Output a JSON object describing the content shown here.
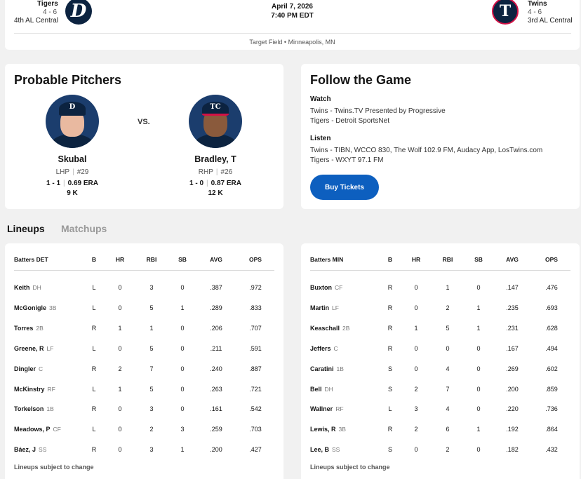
{
  "game": {
    "away": {
      "name": "Tigers",
      "record": "4 - 6",
      "standing": "4th AL Central",
      "logo_glyph": "D",
      "color": "#0c2340"
    },
    "home": {
      "name": "Twins",
      "record": "4 - 6",
      "standing": "3rd AL Central",
      "logo_glyph": "T",
      "color": "#0c2340",
      "accent": "#d31145"
    },
    "date": "April 7, 2026",
    "time": "7:40 PM EDT",
    "venue": "Target Field • Minneapolis, MN"
  },
  "pitchers": {
    "title": "Probable Pitchers",
    "vs": "VS.",
    "away": {
      "name": "Skubal",
      "throws": "LHP",
      "number": "#29",
      "record": "1 - 1",
      "era": "0.69 ERA",
      "strikeouts": "9 K",
      "cap_glyph": "D"
    },
    "home": {
      "name": "Bradley, T",
      "throws": "RHP",
      "number": "#26",
      "record": "1 - 0",
      "era": "0.87 ERA",
      "strikeouts": "12 K",
      "cap_glyph": "TC"
    }
  },
  "follow": {
    "title": "Follow the Game",
    "watch_label": "Watch",
    "watch": [
      "Twins - Twins.TV Presented by Progressive",
      "Tigers - Detroit SportsNet"
    ],
    "listen_label": "Listen",
    "listen": [
      "Twins - TIBN, WCCO 830, The Wolf 102.9 FM, Audacy App, LosTwins.com",
      "Tigers - WXYT 97.1 FM"
    ],
    "tickets_label": "Buy Tickets",
    "tickets_color": "#0d5fbf"
  },
  "tabs": {
    "lineups": "Lineups",
    "matchups": "Matchups"
  },
  "lineups": {
    "columns": [
      "B",
      "HR",
      "RBI",
      "SB",
      "AVG",
      "OPS"
    ],
    "note": "Lineups subject to change",
    "det": {
      "header": "Batters DET",
      "rows": [
        {
          "name": "Keith",
          "pos": "DH",
          "b": "L",
          "hr": "0",
          "rbi": "3",
          "sb": "0",
          "avg": ".387",
          "ops": ".972"
        },
        {
          "name": "McGonigle",
          "pos": "3B",
          "b": "L",
          "hr": "0",
          "rbi": "5",
          "sb": "1",
          "avg": ".289",
          "ops": ".833"
        },
        {
          "name": "Torres",
          "pos": "2B",
          "b": "R",
          "hr": "1",
          "rbi": "1",
          "sb": "0",
          "avg": ".206",
          "ops": ".707"
        },
        {
          "name": "Greene, R",
          "pos": "LF",
          "b": "L",
          "hr": "0",
          "rbi": "5",
          "sb": "0",
          "avg": ".211",
          "ops": ".591"
        },
        {
          "name": "Dingler",
          "pos": "C",
          "b": "R",
          "hr": "2",
          "rbi": "7",
          "sb": "0",
          "avg": ".240",
          "ops": ".887"
        },
        {
          "name": "McKinstry",
          "pos": "RF",
          "b": "L",
          "hr": "1",
          "rbi": "5",
          "sb": "0",
          "avg": ".263",
          "ops": ".721"
        },
        {
          "name": "Torkelson",
          "pos": "1B",
          "b": "R",
          "hr": "0",
          "rbi": "3",
          "sb": "0",
          "avg": ".161",
          "ops": ".542"
        },
        {
          "name": "Meadows, P",
          "pos": "CF",
          "b": "L",
          "hr": "0",
          "rbi": "2",
          "sb": "3",
          "avg": ".259",
          "ops": ".703"
        },
        {
          "name": "Báez, J",
          "pos": "SS",
          "b": "R",
          "hr": "0",
          "rbi": "3",
          "sb": "1",
          "avg": ".200",
          "ops": ".427"
        }
      ]
    },
    "min": {
      "header": "Batters MIN",
      "rows": [
        {
          "name": "Buxton",
          "pos": "CF",
          "b": "R",
          "hr": "0",
          "rbi": "1",
          "sb": "0",
          "avg": ".147",
          "ops": ".476"
        },
        {
          "name": "Martin",
          "pos": "LF",
          "b": "R",
          "hr": "0",
          "rbi": "2",
          "sb": "1",
          "avg": ".235",
          "ops": ".693"
        },
        {
          "name": "Keaschall",
          "pos": "2B",
          "b": "R",
          "hr": "1",
          "rbi": "5",
          "sb": "1",
          "avg": ".231",
          "ops": ".628"
        },
        {
          "name": "Jeffers",
          "pos": "C",
          "b": "R",
          "hr": "0",
          "rbi": "0",
          "sb": "0",
          "avg": ".167",
          "ops": ".494"
        },
        {
          "name": "Caratini",
          "pos": "1B",
          "b": "S",
          "hr": "0",
          "rbi": "4",
          "sb": "0",
          "avg": ".269",
          "ops": ".602"
        },
        {
          "name": "Bell",
          "pos": "DH",
          "b": "S",
          "hr": "2",
          "rbi": "7",
          "sb": "0",
          "avg": ".200",
          "ops": ".859"
        },
        {
          "name": "Wallner",
          "pos": "RF",
          "b": "L",
          "hr": "3",
          "rbi": "4",
          "sb": "0",
          "avg": ".220",
          "ops": ".736"
        },
        {
          "name": "Lewis, R",
          "pos": "3B",
          "b": "R",
          "hr": "2",
          "rbi": "6",
          "sb": "1",
          "avg": ".192",
          "ops": ".864"
        },
        {
          "name": "Lee, B",
          "pos": "SS",
          "b": "S",
          "hr": "0",
          "rbi": "2",
          "sb": "0",
          "avg": ".182",
          "ops": ".432"
        }
      ]
    }
  }
}
